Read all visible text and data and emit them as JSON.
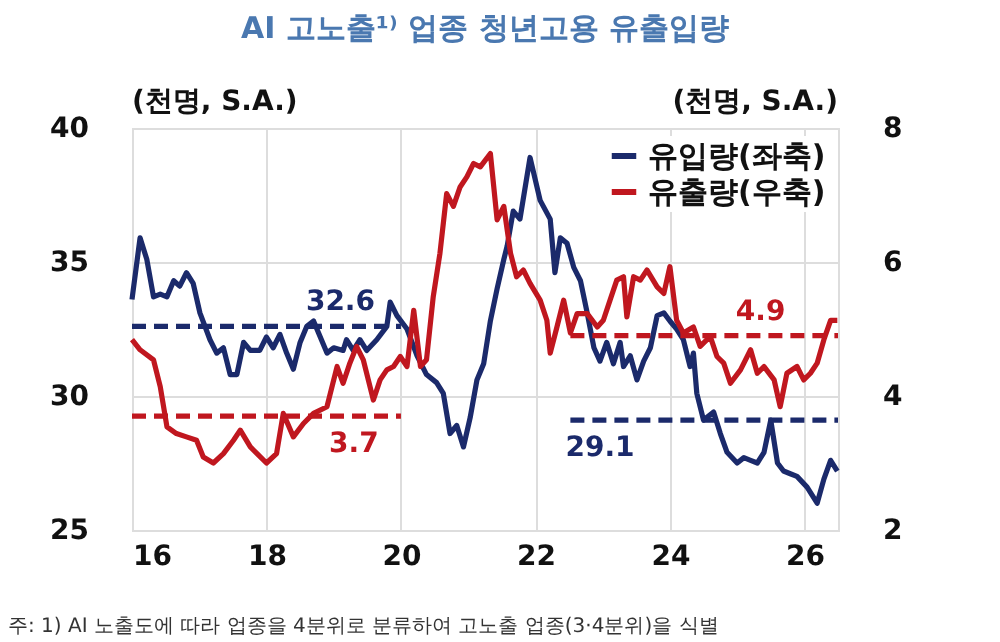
{
  "chart_data": {
    "type": "line",
    "title": "AI 고노출¹⁾ 업종 청년고용 유출입량",
    "ylabel": "(천명, S.A.)",
    "y2label": "(천명, S.A.)",
    "annotations": [
      "주: 1) AI 노출도에 따라 업종을 4분위로 분류하여 고노출 업종(3·4분위)을 식별"
    ],
    "xlim": [
      2016,
      2026.5
    ],
    "xticks": [
      {
        "value": 2016,
        "label": "16"
      },
      {
        "value": 2018,
        "label": "18"
      },
      {
        "value": 2020,
        "label": "20"
      },
      {
        "value": 2022,
        "label": "22"
      },
      {
        "value": 2024,
        "label": "24"
      },
      {
        "value": 2026,
        "label": "26"
      }
    ],
    "ylim": [
      25,
      40
    ],
    "yticks": [
      25,
      30,
      35,
      40
    ],
    "y2lim": [
      2,
      8
    ],
    "y2ticks": [
      2,
      4,
      6,
      8
    ],
    "grid": true,
    "legend": "top right",
    "series": [
      {
        "name": "유입량(좌축)",
        "color": "#1b2a6b",
        "axis": "y",
        "x": [
          2016.0,
          2016.12,
          2016.22,
          2016.32,
          2016.42,
          2016.52,
          2016.62,
          2016.71,
          2016.81,
          2016.91,
          2017.01,
          2017.16,
          2017.26,
          2017.36,
          2017.46,
          2017.56,
          2017.66,
          2017.76,
          2017.9,
          2018.0,
          2018.1,
          2018.2,
          2018.3,
          2018.4,
          2018.5,
          2018.6,
          2018.7,
          2018.8,
          2018.9,
          2019.0,
          2019.14,
          2019.19,
          2019.29,
          2019.39,
          2019.49,
          2019.64,
          2019.79,
          2019.84,
          2019.94,
          2020.09,
          2020.24,
          2020.38,
          2020.53,
          2020.63,
          2020.73,
          2020.83,
          2020.93,
          2021.03,
          2021.13,
          2021.23,
          2021.33,
          2021.43,
          2021.53,
          2021.58,
          2021.67,
          2021.77,
          2021.92,
          2022.07,
          2022.22,
          2022.29,
          2022.37,
          2022.47,
          2022.57,
          2022.67,
          2022.77,
          2022.87,
          2022.96,
          2023.06,
          2023.16,
          2023.26,
          2023.31,
          2023.41,
          2023.51,
          2023.61,
          2023.71,
          2023.81,
          2023.91,
          2024.0,
          2024.1,
          2024.2,
          2024.3,
          2024.35,
          2024.4,
          2024.5,
          2024.65,
          2024.75,
          2024.85,
          2025.0,
          2025.1,
          2025.2,
          2025.3,
          2025.4,
          2025.5,
          2025.6,
          2025.69,
          2025.79,
          2025.89,
          2026.04,
          2026.19,
          2026.29,
          2026.39,
          2026.49
        ],
        "values": [
          33.6,
          35.9,
          35.1,
          33.7,
          33.8,
          33.7,
          34.3,
          34.1,
          34.6,
          34.2,
          33.1,
          32.1,
          31.6,
          31.8,
          30.8,
          30.8,
          32.0,
          31.7,
          31.7,
          32.2,
          31.8,
          32.3,
          31.6,
          31.0,
          32.0,
          32.6,
          32.8,
          32.2,
          31.6,
          31.8,
          31.7,
          32.1,
          31.7,
          32.1,
          31.7,
          32.1,
          32.6,
          33.5,
          33.0,
          32.5,
          31.5,
          30.8,
          30.5,
          30.1,
          28.6,
          28.9,
          28.1,
          29.2,
          30.6,
          31.2,
          32.8,
          34.0,
          35.1,
          35.6,
          36.9,
          36.6,
          38.9,
          37.3,
          36.6,
          34.6,
          35.9,
          35.7,
          34.8,
          34.3,
          33.1,
          31.8,
          31.3,
          32.0,
          31.2,
          32.0,
          31.1,
          31.5,
          30.6,
          31.3,
          31.8,
          33.0,
          33.1,
          32.8,
          32.5,
          32.1,
          31.1,
          31.6,
          30.1,
          29.1,
          29.4,
          28.6,
          27.9,
          27.5,
          27.7,
          27.6,
          27.5,
          27.9,
          29.1,
          27.5,
          27.2,
          27.1,
          27.0,
          26.6,
          26.0,
          26.9,
          27.6,
          27.2
        ]
      },
      {
        "name": "유출량(우축)",
        "color": "#c0171f",
        "axis": "y2",
        "x": [
          2016.0,
          2016.12,
          2016.32,
          2016.42,
          2016.52,
          2016.66,
          2016.81,
          2016.96,
          2017.06,
          2017.21,
          2017.36,
          2017.51,
          2017.61,
          2017.76,
          2017.86,
          2018.0,
          2018.15,
          2018.25,
          2018.4,
          2018.55,
          2018.7,
          2018.9,
          2019.05,
          2019.14,
          2019.24,
          2019.34,
          2019.44,
          2019.59,
          2019.69,
          2019.79,
          2019.89,
          2019.99,
          2020.09,
          2020.19,
          2020.29,
          2020.38,
          2020.48,
          2020.58,
          2020.68,
          2020.78,
          2020.88,
          2020.98,
          2021.08,
          2021.18,
          2021.33,
          2021.43,
          2021.53,
          2021.63,
          2021.72,
          2021.82,
          2021.92,
          2022.07,
          2022.17,
          2022.22,
          2022.32,
          2022.42,
          2022.52,
          2022.62,
          2022.77,
          2022.92,
          2023.01,
          2023.11,
          2023.21,
          2023.31,
          2023.36,
          2023.46,
          2023.56,
          2023.66,
          2023.81,
          2023.91,
          2024.0,
          2024.1,
          2024.2,
          2024.35,
          2024.45,
          2024.6,
          2024.7,
          2024.8,
          2024.9,
          2025.05,
          2025.2,
          2025.3,
          2025.4,
          2025.55,
          2025.64,
          2025.74,
          2025.89,
          2025.99,
          2026.09,
          2026.19,
          2026.29,
          2026.39,
          2026.49
        ],
        "values": [
          4.84,
          4.69,
          4.54,
          4.14,
          3.54,
          3.44,
          3.39,
          3.34,
          3.09,
          3.0,
          3.14,
          3.34,
          3.49,
          3.24,
          3.14,
          3.0,
          3.14,
          3.74,
          3.39,
          3.59,
          3.74,
          3.84,
          4.44,
          4.19,
          4.49,
          4.74,
          4.54,
          3.94,
          4.24,
          4.39,
          4.44,
          4.59,
          4.44,
          5.28,
          4.44,
          4.54,
          5.48,
          6.13,
          7.02,
          6.83,
          7.12,
          7.27,
          7.47,
          7.42,
          7.62,
          6.63,
          6.83,
          6.13,
          5.78,
          5.88,
          5.68,
          5.43,
          5.13,
          4.64,
          5.03,
          5.43,
          4.94,
          5.23,
          5.23,
          5.03,
          5.13,
          5.43,
          5.73,
          5.78,
          5.18,
          5.78,
          5.73,
          5.88,
          5.63,
          5.53,
          5.93,
          5.13,
          4.94,
          5.03,
          4.74,
          4.89,
          4.59,
          4.49,
          4.19,
          4.39,
          4.69,
          4.34,
          4.44,
          4.24,
          3.84,
          4.34,
          4.44,
          4.24,
          4.34,
          4.49,
          4.84,
          5.13,
          5.13
        ]
      },
      {
        "type": "line",
        "line_style": "dashed",
        "color": "#1b2a6b",
        "axis": "y",
        "x": [
          2016,
          2019.1,
          2020
        ],
        "values": [
          32.6,
          32.6,
          32.6
        ],
        "value_labels": [
          null,
          "32.6",
          null
        ]
      },
      {
        "type": "line",
        "line_style": "dashed",
        "color": "#c0171f",
        "axis": "y2",
        "x": [
          2016,
          2019.3,
          2020
        ],
        "values": [
          3.7,
          3.7,
          3.7
        ],
        "value_labels": [
          null,
          "3.7",
          null
        ]
      },
      {
        "type": "line",
        "line_style": "dashed",
        "color": "#1b2a6b",
        "axis": "y",
        "x": [
          2022.52,
          2022.96,
          2026.5
        ],
        "values": [
          29.1,
          29.1,
          29.1
        ],
        "value_labels": [
          null,
          "29.1",
          null
        ]
      },
      {
        "type": "line",
        "line_style": "dashed",
        "color": "#c0171f",
        "axis": "y2",
        "x": [
          2022.52,
          2025.35,
          2026.5
        ],
        "values": [
          4.9,
          4.9,
          4.9
        ],
        "value_labels": [
          null,
          "4.9",
          null
        ]
      }
    ]
  }
}
